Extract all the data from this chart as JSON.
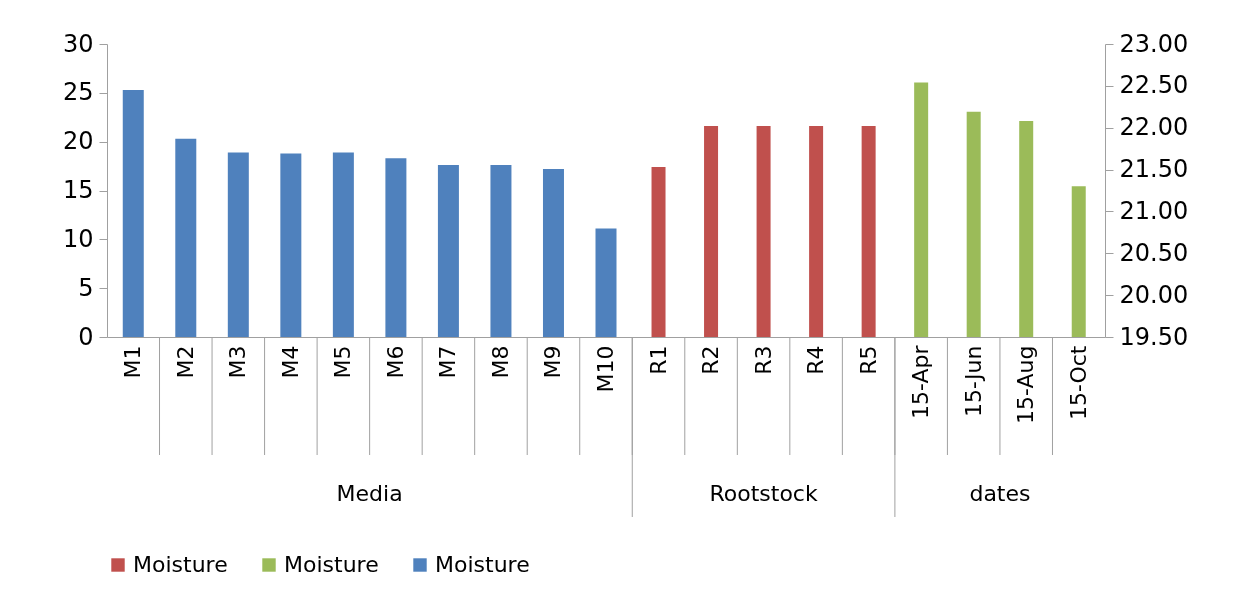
{
  "chart_data": {
    "type": "bar",
    "categories": [
      "M1",
      "M2",
      "M3",
      "M4",
      "M5",
      "M6",
      "M7",
      "M8",
      "M9",
      "M10",
      "R1",
      "R2",
      "R3",
      "R4",
      "R5",
      "15-Apr",
      "15-Jun",
      "15-Aug",
      "15-Oct"
    ],
    "series": [
      {
        "name": "Moisture",
        "color": "#c0504d",
        "axis": "y2",
        "values": [
          null,
          null,
          null,
          null,
          null,
          null,
          null,
          null,
          null,
          null,
          21.53,
          22.02,
          22.02,
          22.02,
          22.02,
          null,
          null,
          null,
          null
        ]
      },
      {
        "name": "Moisture",
        "color": "#9bbb59",
        "axis": "y2",
        "values": [
          null,
          null,
          null,
          null,
          null,
          null,
          null,
          null,
          null,
          null,
          null,
          null,
          null,
          null,
          null,
          22.54,
          22.19,
          22.08,
          21.3
        ]
      },
      {
        "name": "Moisture",
        "color": "#4f81bd",
        "values": [
          25.3,
          20.3,
          18.9,
          18.8,
          18.9,
          18.3,
          17.6,
          17.6,
          17.2,
          11.1,
          null,
          null,
          null,
          null,
          null,
          null,
          null,
          null,
          null
        ]
      }
    ],
    "annotations": [
      "Media",
      "Rootstock",
      "dates"
    ],
    "ylim": [
      0,
      30
    ],
    "yticks": [
      0,
      5,
      10,
      15,
      20,
      25,
      30
    ],
    "y2lim": [
      19.5,
      23
    ],
    "y2ticks": [
      {
        "value": 19.5,
        "label": "19.50"
      },
      {
        "value": 20,
        "label": "20.00"
      },
      {
        "value": 20.5,
        "label": "20.50"
      },
      {
        "value": 21,
        "label": "21.00"
      },
      {
        "value": 21.5,
        "label": "21.50"
      },
      {
        "value": 22,
        "label": "22.00"
      },
      {
        "value": 22.5,
        "label": "22.50"
      },
      {
        "value": 23,
        "label": "23.00"
      }
    ],
    "grid": false,
    "legend": "bottom"
  }
}
